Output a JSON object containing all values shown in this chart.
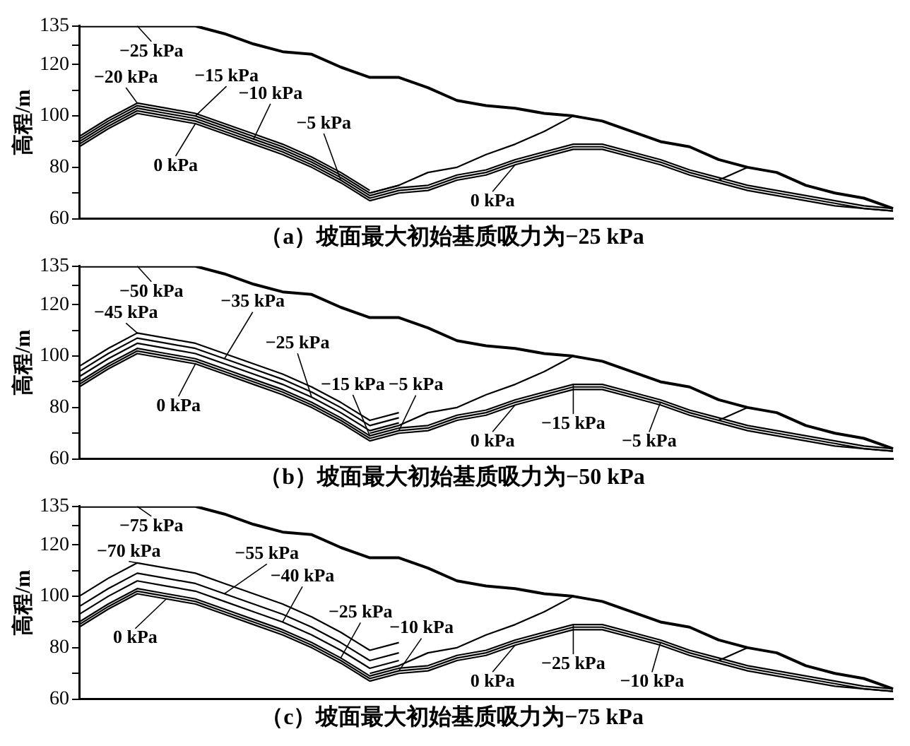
{
  "chart_data": [
    {
      "type": "line",
      "legend": "top left",
      "title": "（a）坡面最大初始基质吸力为−25 kPa",
      "ylabel": "高程/m",
      "categories": [
        null,
        null,
        null,
        null,
        null,
        null,
        null,
        null,
        null,
        null,
        null,
        null,
        null,
        null,
        null,
        null,
        null,
        null,
        null,
        null,
        null,
        null,
        null,
        null,
        null,
        null,
        null,
        null,
        null
      ],
      "ylim": [
        60,
        135
      ],
      "yticks": [
        60,
        {
          "value": 70,
          "label": null
        },
        80,
        {
          "value": 90,
          "label": null
        },
        100,
        {
          "value": 110,
          "label": null
        },
        120,
        {
          "value": 127.5,
          "label": null
        },
        135
      ],
      "tick_labels": "y",
      "series": [
        {
          "name": "−25 kPa",
          "color": "#000000",
          "values": [
            135,
            135,
            135,
            135,
            135,
            132,
            128,
            125,
            124,
            119,
            115,
            115,
            111,
            106,
            104,
            103,
            101,
            100,
            98,
            94,
            90,
            88,
            83,
            80,
            78,
            73,
            70,
            68,
            64
          ]
        },
        {
          "name": "−20 kPa",
          "color": "#000000",
          "values": [
            92,
            99,
            105,
            103,
            101,
            97,
            93,
            89,
            84,
            78,
            71,
            null,
            null,
            null,
            null,
            null,
            null,
            null,
            null,
            null,
            null,
            null,
            null,
            null,
            null,
            null,
            null,
            null,
            null
          ]
        },
        {
          "name": "−15 kPa",
          "color": "#000000",
          "values": [
            91,
            98,
            104,
            102,
            100,
            96,
            92,
            88,
            83,
            77,
            70,
            73,
            null,
            null,
            null,
            null,
            null,
            null,
            null,
            null,
            null,
            null,
            null,
            null,
            null,
            null,
            null,
            null,
            null
          ]
        },
        {
          "name": "−10 kPa",
          "color": "#000000",
          "values": [
            90,
            97,
            103,
            101,
            99,
            95,
            91,
            87,
            82,
            76,
            69,
            72,
            73,
            77,
            79,
            83,
            86,
            89,
            89,
            86,
            83,
            79,
            76,
            73,
            71,
            69,
            67,
            65,
            64
          ]
        },
        {
          "name": "−5 kPa",
          "color": "#000000",
          "values": [
            89,
            96,
            102,
            100,
            98,
            94,
            90,
            86,
            81,
            75,
            68,
            71,
            72,
            76,
            78,
            82,
            85,
            88,
            88,
            85,
            82,
            78,
            75,
            72,
            70,
            68,
            66,
            64,
            63
          ]
        },
        {
          "name": "0 kPa",
          "color": "#000000",
          "values": [
            88,
            95,
            101,
            99,
            97,
            93,
            89,
            85,
            80,
            74,
            67,
            70,
            71,
            75,
            77,
            81,
            84,
            87,
            87,
            84,
            81,
            77,
            74,
            71,
            69,
            67,
            65,
            64,
            63
          ]
        },
        {
          "color": "#000000",
          "values": [
            null,
            null,
            null,
            null,
            null,
            null,
            null,
            null,
            null,
            null,
            70,
            73,
            78,
            80,
            85,
            89,
            94,
            100,
            null,
            null,
            null,
            null,
            null,
            null,
            null,
            null,
            null,
            null,
            null
          ]
        },
        {
          "color": "#000000",
          "values": [
            null,
            null,
            null,
            null,
            null,
            null,
            null,
            null,
            null,
            null,
            null,
            null,
            null,
            null,
            null,
            null,
            null,
            null,
            null,
            null,
            null,
            null,
            75,
            80,
            null,
            null,
            null,
            null,
            null
          ]
        }
      ]
    },
    {
      "type": "line",
      "legend": "top left",
      "title": "（b）坡面最大初始基质吸力为−50 kPa",
      "ylabel": "高程/m",
      "categories": [
        null,
        null,
        null,
        null,
        null,
        null,
        null,
        null,
        null,
        null,
        null,
        null,
        null,
        null,
        null,
        null,
        null,
        null,
        null,
        null,
        null,
        null,
        null,
        null,
        null,
        null,
        null,
        null,
        null
      ],
      "ylim": [
        60,
        135
      ],
      "yticks": [
        60,
        {
          "value": 70,
          "label": null
        },
        80,
        {
          "value": 90,
          "label": null
        },
        100,
        {
          "value": 110,
          "label": null
        },
        120,
        {
          "value": 127.5,
          "label": null
        },
        135
      ],
      "tick_labels": "y",
      "series": [
        {
          "name": "−50 kPa",
          "color": "#000000",
          "values": [
            135,
            135,
            135,
            135,
            135,
            132,
            128,
            125,
            124,
            119,
            115,
            115,
            111,
            106,
            104,
            103,
            101,
            100,
            98,
            94,
            90,
            88,
            83,
            80,
            78,
            73,
            70,
            68,
            64
          ]
        },
        {
          "name": "−45 kPa",
          "color": "#000000",
          "values": [
            96,
            103,
            109,
            107,
            105,
            101,
            97,
            93,
            88,
            82,
            75,
            78,
            null,
            null,
            null,
            null,
            null,
            null,
            null,
            null,
            null,
            null,
            null,
            null,
            null,
            null,
            null,
            null,
            null
          ]
        },
        {
          "name": "−35 kPa",
          "color": "#000000",
          "values": [
            94,
            101,
            107,
            105,
            103,
            99,
            95,
            91,
            86,
            80,
            73,
            76,
            null,
            null,
            null,
            null,
            null,
            null,
            null,
            null,
            null,
            null,
            null,
            null,
            null,
            null,
            null,
            null,
            null
          ]
        },
        {
          "name": "−25 kPa",
          "color": "#000000",
          "values": [
            92,
            99,
            105,
            103,
            101,
            97,
            93,
            89,
            84,
            78,
            71,
            74,
            null,
            null,
            null,
            null,
            null,
            null,
            null,
            null,
            null,
            null,
            null,
            null,
            null,
            null,
            null,
            null,
            null
          ]
        },
        {
          "name": "−15 kPa",
          "color": "#000000",
          "values": [
            90,
            97,
            103,
            101,
            99,
            95,
            91,
            87,
            82,
            76,
            69,
            72,
            73,
            77,
            79,
            83,
            86,
            89,
            89,
            86,
            83,
            79,
            76,
            73,
            71,
            69,
            67,
            65,
            64
          ]
        },
        {
          "name": "−5 kPa",
          "color": "#000000",
          "values": [
            89,
            96,
            102,
            100,
            98,
            94,
            90,
            86,
            81,
            75,
            68,
            71,
            72,
            76,
            78,
            82,
            85,
            88,
            88,
            85,
            82,
            78,
            75,
            72,
            70,
            68,
            66,
            64,
            63
          ]
        },
        {
          "name": "0 kPa",
          "color": "#000000",
          "values": [
            88,
            95,
            101,
            99,
            97,
            93,
            89,
            85,
            80,
            74,
            67,
            70,
            71,
            75,
            77,
            81,
            84,
            87,
            87,
            84,
            81,
            77,
            74,
            71,
            69,
            67,
            65,
            64,
            63
          ]
        },
        {
          "color": "#000000",
          "values": [
            null,
            null,
            null,
            null,
            null,
            null,
            null,
            null,
            null,
            null,
            70,
            73,
            78,
            80,
            85,
            89,
            94,
            100,
            null,
            null,
            null,
            null,
            null,
            null,
            null,
            null,
            null,
            null,
            null
          ]
        },
        {
          "color": "#000000",
          "values": [
            null,
            null,
            null,
            null,
            null,
            null,
            null,
            null,
            null,
            null,
            null,
            null,
            null,
            null,
            null,
            null,
            null,
            null,
            null,
            null,
            null,
            null,
            75,
            80,
            null,
            null,
            null,
            null,
            null
          ]
        }
      ]
    },
    {
      "type": "line",
      "legend": "top left",
      "title": "（c）坡面最大初始基质吸力为−75 kPa",
      "ylabel": "高程/m",
      "categories": [
        null,
        null,
        null,
        null,
        null,
        null,
        null,
        null,
        null,
        null,
        null,
        null,
        null,
        null,
        null,
        null,
        null,
        null,
        null,
        null,
        null,
        null,
        null,
        null,
        null,
        null,
        null,
        null,
        null
      ],
      "ylim": [
        60,
        135
      ],
      "yticks": [
        60,
        {
          "value": 70,
          "label": null
        },
        80,
        {
          "value": 90,
          "label": null
        },
        100,
        {
          "value": 110,
          "label": null
        },
        120,
        {
          "value": 127.5,
          "label": null
        },
        135
      ],
      "tick_labels": "y",
      "series": [
        {
          "name": "−75 kPa",
          "color": "#000000",
          "values": [
            135,
            135,
            135,
            135,
            135,
            132,
            128,
            125,
            124,
            119,
            115,
            115,
            111,
            106,
            104,
            103,
            101,
            100,
            98,
            94,
            90,
            88,
            83,
            80,
            78,
            73,
            70,
            68,
            64
          ]
        },
        {
          "name": "−70 kPa",
          "color": "#000000",
          "values": [
            100,
            107,
            113,
            111,
            109,
            105,
            101,
            97,
            92,
            86,
            79,
            82,
            null,
            null,
            null,
            null,
            null,
            null,
            null,
            null,
            null,
            null,
            null,
            null,
            null,
            null,
            null,
            null,
            null
          ]
        },
        {
          "name": "−55 kPa",
          "color": "#000000",
          "values": [
            96,
            103,
            109,
            107,
            105,
            101,
            97,
            93,
            88,
            82,
            75,
            78,
            null,
            null,
            null,
            null,
            null,
            null,
            null,
            null,
            null,
            null,
            null,
            null,
            null,
            null,
            null,
            null,
            null
          ]
        },
        {
          "name": "−40 kPa",
          "color": "#000000",
          "values": [
            93,
            100,
            106,
            104,
            102,
            98,
            94,
            90,
            85,
            79,
            72,
            75,
            null,
            null,
            null,
            null,
            null,
            null,
            null,
            null,
            null,
            null,
            null,
            null,
            null,
            null,
            null,
            null,
            null
          ]
        },
        {
          "name": "−25 kPa",
          "color": "#000000",
          "values": [
            90,
            97,
            103,
            101,
            99,
            95,
            91,
            87,
            82,
            76,
            69,
            72,
            73,
            77,
            79,
            83,
            86,
            89,
            89,
            86,
            83,
            79,
            76,
            73,
            71,
            69,
            67,
            65,
            64
          ]
        },
        {
          "name": "−10 kPa",
          "color": "#000000",
          "values": [
            89,
            96,
            102,
            100,
            98,
            94,
            90,
            86,
            81,
            75,
            68,
            71,
            72,
            76,
            78,
            82,
            85,
            88,
            88,
            85,
            82,
            78,
            75,
            72,
            70,
            68,
            66,
            64,
            63
          ]
        },
        {
          "name": "0 kPa",
          "color": "#000000",
          "values": [
            88,
            95,
            101,
            99,
            97,
            93,
            89,
            85,
            80,
            74,
            67,
            70,
            71,
            75,
            77,
            81,
            84,
            87,
            87,
            84,
            81,
            77,
            74,
            71,
            69,
            67,
            65,
            64,
            63
          ]
        },
        {
          "color": "#000000",
          "values": [
            null,
            null,
            null,
            null,
            null,
            null,
            null,
            null,
            null,
            null,
            70,
            73,
            78,
            80,
            85,
            89,
            94,
            100,
            null,
            null,
            null,
            null,
            null,
            null,
            null,
            null,
            null,
            null,
            null
          ]
        },
        {
          "color": "#000000",
          "values": [
            null,
            null,
            null,
            null,
            null,
            null,
            null,
            null,
            null,
            null,
            null,
            null,
            null,
            null,
            null,
            null,
            null,
            null,
            null,
            null,
            null,
            null,
            75,
            80,
            null,
            null,
            null,
            null,
            null
          ]
        }
      ]
    }
  ]
}
